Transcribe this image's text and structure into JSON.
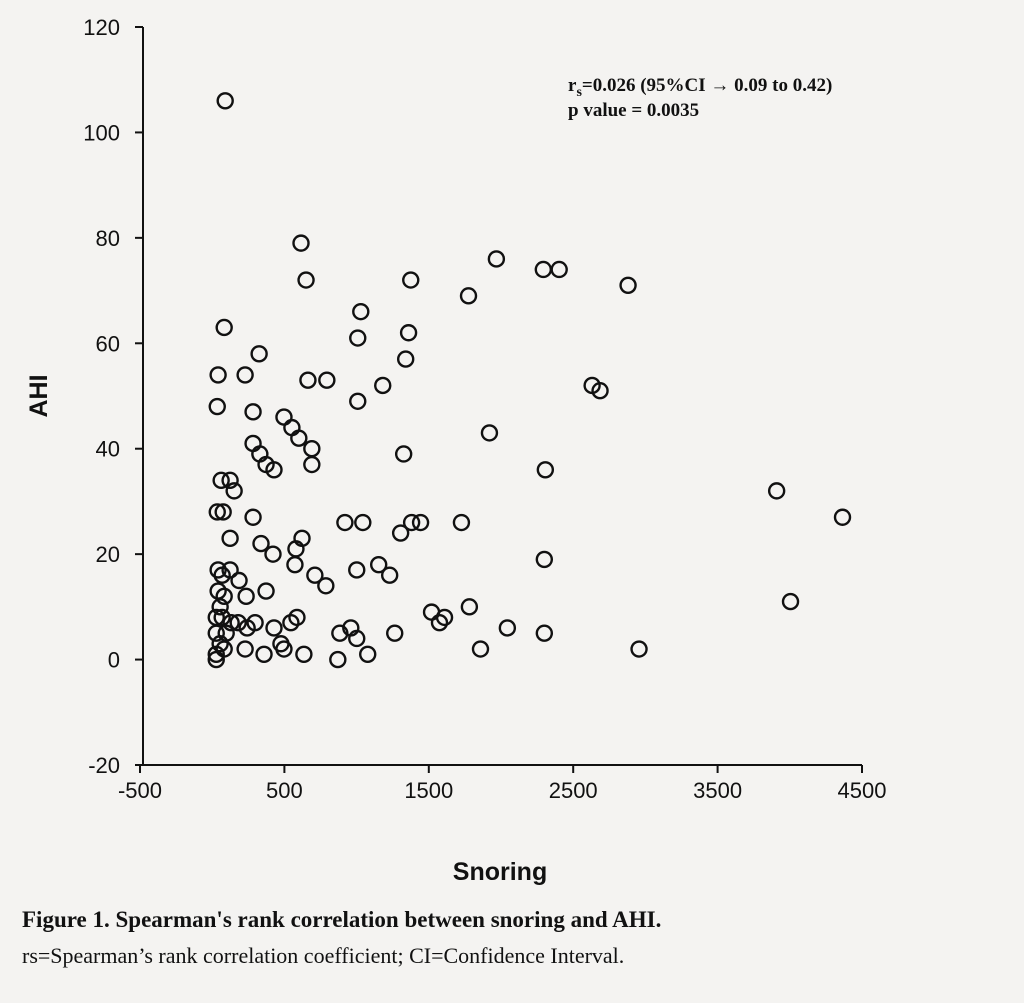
{
  "chart_data": {
    "type": "scatter",
    "xlabel": "Snoring",
    "ylabel": "AHI",
    "xlim": [
      -500,
      4500
    ],
    "ylim": [
      -20,
      120
    ],
    "xticks": [
      "-500",
      "500",
      "1500",
      "2500",
      "3500",
      "4500"
    ],
    "xtick_values": [
      -500,
      500,
      1500,
      2500,
      3500,
      4500
    ],
    "yticks": [
      "120",
      "100",
      "80",
      "60",
      "40",
      "20",
      "0",
      "-20"
    ],
    "ytick_values": [
      120,
      100,
      80,
      60,
      40,
      20,
      0,
      -20
    ],
    "grid": false,
    "annotation": {
      "line1": "rs=0.026 (95%CI → 0.09 to 0.42)",
      "line1_prefix": "r",
      "line1_sub": "s",
      "line1_rest": "=0.026 (95%CI → 0.09 to 0.42)",
      "line2": "p value = 0.0035"
    },
    "points": [
      [
        90,
        106
      ],
      [
        615,
        79
      ],
      [
        650,
        72
      ],
      [
        83,
        63
      ],
      [
        41,
        54
      ],
      [
        228,
        54
      ],
      [
        325,
        58
      ],
      [
        35,
        48
      ],
      [
        283,
        47
      ],
      [
        497,
        46
      ],
      [
        552,
        44
      ],
      [
        600,
        42
      ],
      [
        690,
        40
      ],
      [
        690,
        37
      ],
      [
        283,
        41
      ],
      [
        330,
        39
      ],
      [
        373,
        37
      ],
      [
        428,
        36
      ],
      [
        62,
        34
      ],
      [
        124,
        34
      ],
      [
        152,
        32
      ],
      [
        35,
        28
      ],
      [
        76,
        28
      ],
      [
        283,
        27
      ],
      [
        124,
        23
      ],
      [
        338,
        22
      ],
      [
        421,
        20
      ],
      [
        580,
        21
      ],
      [
        622,
        23
      ],
      [
        573,
        18
      ],
      [
        711,
        16
      ],
      [
        787,
        14
      ],
      [
        373,
        13
      ],
      [
        235,
        12
      ],
      [
        186,
        15
      ],
      [
        41,
        17
      ],
      [
        69,
        16
      ],
      [
        124,
        17
      ],
      [
        41,
        13
      ],
      [
        83,
        12
      ],
      [
        55,
        10
      ],
      [
        28,
        8
      ],
      [
        69,
        8
      ],
      [
        131,
        7
      ],
      [
        180,
        7
      ],
      [
        242,
        6
      ],
      [
        297,
        7
      ],
      [
        428,
        6
      ],
      [
        545,
        7
      ],
      [
        587,
        8
      ],
      [
        28,
        5
      ],
      [
        97,
        5
      ],
      [
        228,
        2
      ],
      [
        359,
        1
      ],
      [
        476,
        3
      ],
      [
        497,
        2
      ],
      [
        635,
        1
      ],
      [
        870,
        0
      ],
      [
        884,
        5
      ],
      [
        960,
        6
      ],
      [
        1001,
        4
      ],
      [
        1077,
        1
      ],
      [
        1264,
        5
      ],
      [
        919,
        26
      ],
      [
        1043,
        26
      ],
      [
        1001,
        17
      ],
      [
        1153,
        18
      ],
      [
        1229,
        16
      ],
      [
        1305,
        24
      ],
      [
        1381,
        26
      ],
      [
        1443,
        26
      ],
      [
        1519,
        9
      ],
      [
        1574,
        7
      ],
      [
        1609,
        8
      ],
      [
        1781,
        10
      ],
      [
        1726,
        26
      ],
      [
        1858,
        2
      ],
      [
        2044,
        6
      ],
      [
        2300,
        5
      ],
      [
        2300,
        19
      ],
      [
        2307,
        36
      ],
      [
        2956,
        2
      ],
      [
        4005,
        11
      ],
      [
        4365,
        27
      ],
      [
        3909,
        32
      ],
      [
        1920,
        43
      ],
      [
        2631,
        52
      ],
      [
        2686,
        51
      ],
      [
        2880,
        71
      ],
      [
        2293,
        74
      ],
      [
        2403,
        74
      ],
      [
        1968,
        76
      ],
      [
        1775,
        69
      ],
      [
        1375,
        72
      ],
      [
        1029,
        66
      ],
      [
        1360,
        62
      ],
      [
        1008,
        61
      ],
      [
        1340,
        57
      ],
      [
        1181,
        52
      ],
      [
        1008,
        49
      ],
      [
        794,
        53
      ],
      [
        663,
        53
      ],
      [
        1326,
        39
      ],
      [
        28,
        1
      ],
      [
        28,
        0
      ],
      [
        55,
        3
      ],
      [
        83,
        2
      ]
    ]
  },
  "caption": {
    "title": "Figure 1.  Spearman's rank correlation between snoring and AHI.",
    "note": "rs=Spearman’s rank correlation coefficient; CI=Confidence Interval."
  },
  "colors": {
    "marker": "#111111",
    "axis": "#111111",
    "paper": "#f4f3f1"
  }
}
